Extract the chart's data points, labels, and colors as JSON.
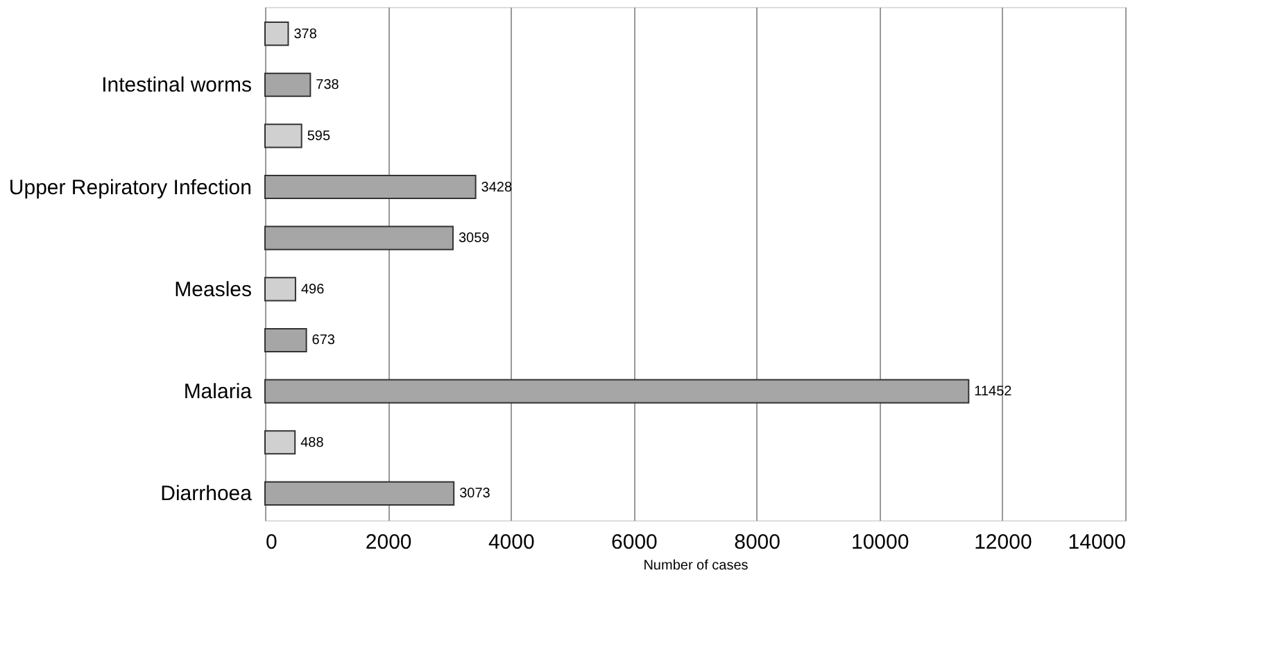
{
  "chart_data": {
    "type": "bar",
    "orientation": "horizontal",
    "xlabel": "Number of cases",
    "categories": [
      null,
      "Intestinal worms",
      null,
      "Upper Repiratory Infection",
      null,
      "Measles",
      null,
      "Malaria",
      null,
      "Diarrhoea"
    ],
    "values": [
      378,
      738,
      595,
      3428,
      3059,
      496,
      673,
      11452,
      488,
      3073
    ],
    "colors": [
      "#d0d0d0",
      "#a6a6a6",
      "#d0d0d0",
      "#a6a6a6",
      "#a6a6a6",
      "#d0d0d0",
      "#a6a6a6",
      "#a6a6a6",
      "#d0d0d0",
      "#a6a6a6"
    ],
    "xlim": [
      0,
      14000
    ],
    "xticks": [
      0,
      2000,
      4000,
      6000,
      8000,
      10000,
      12000,
      14000
    ],
    "grid": "x",
    "data_labels": true
  }
}
